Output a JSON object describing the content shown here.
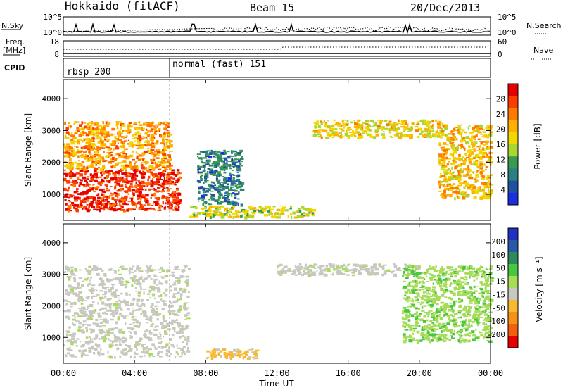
{
  "header": {
    "station": "Hokkaido (fitACF)",
    "beam": "Beam 15",
    "date": "20/Dec/2013"
  },
  "summary": {
    "left_top_label": "N.Sky",
    "left_top_ticks": [
      "10^5",
      "10^0"
    ],
    "right_top_label": "N.Search",
    "right_top_ticks": [
      "10^5",
      "10^0"
    ],
    "freq_label_line1": "Freq.",
    "freq_label_line2": "[MHz]",
    "freq_ticks": [
      "18",
      "8"
    ],
    "nave_label": "Nave",
    "nave_ticks": [
      "60",
      "0"
    ],
    "cpid_label": "CPID",
    "cpid_segments": [
      {
        "label": "rbsp 200",
        "start_hour": 0
      },
      {
        "label": "normal (fast) 151",
        "start_hour": 6
      }
    ]
  },
  "time_axis": {
    "label": "Time UT",
    "ticks": [
      "00:00",
      "04:00",
      "08:00",
      "12:00",
      "16:00",
      "20:00",
      "00:00"
    ],
    "tick_hours": [
      0,
      4,
      8,
      12,
      16,
      20,
      24
    ]
  },
  "panels": [
    {
      "name": "power",
      "ylabel": "Slant Range [km]",
      "yticks": [
        "1000",
        "2000",
        "3000",
        "4000"
      ],
      "ytick_values": [
        1000,
        2000,
        3000,
        4000
      ],
      "ylim": [
        180,
        4600
      ],
      "colorbar_label": "Power [dB]",
      "colorbar_ticks": [
        "28",
        "24",
        "20",
        "16",
        "12",
        "8",
        "4"
      ],
      "colorbar_colors": [
        "#e60000",
        "#ff3c00",
        "#ff7a00",
        "#ffb000",
        "#f0d800",
        "#a8d830",
        "#3c9a50",
        "#2a8080",
        "#2050a0",
        "#1830e0"
      ]
    },
    {
      "name": "velocity",
      "ylabel": "Slant Range [km]",
      "yticks": [
        "1000",
        "2000",
        "3000",
        "4000"
      ],
      "ytick_values": [
        1000,
        2000,
        3000,
        4000
      ],
      "ylim": [
        180,
        4600
      ],
      "colorbar_label": "Velocity [m s⁻¹]",
      "colorbar_ticks": [
        "200",
        "100",
        "50",
        "15",
        "-15",
        "-50",
        "-100",
        "-200"
      ],
      "colorbar_colors": [
        "#2030c0",
        "#2a58a8",
        "#2e8a5a",
        "#48c840",
        "#a8dc58",
        "#c8c8c0",
        "#f8b830",
        "#f89018",
        "#f06010",
        "#e80000"
      ]
    }
  ],
  "chart_data": {
    "type": "heatmap",
    "title": "Hokkaido (fitACF) Beam 15 20/Dec/2013",
    "xlabel": "Time UT",
    "ylabel": "Slant Range [km]",
    "xlim_hours": [
      0,
      24
    ],
    "ylim_km": [
      180,
      4600
    ],
    "regions": [
      {
        "panel": "power",
        "t0": 0.0,
        "t1": 6.5,
        "r0": 500,
        "r1": 1800,
        "value_db": 26
      },
      {
        "panel": "power",
        "t0": 0.0,
        "t1": 6.0,
        "r0": 1800,
        "r1": 3300,
        "value_db": 20
      },
      {
        "panel": "power",
        "t0": 7.0,
        "t1": 14.0,
        "r0": 300,
        "r1": 650,
        "value_db": 14
      },
      {
        "panel": "power",
        "t0": 7.5,
        "t1": 10.0,
        "r0": 700,
        "r1": 2400,
        "value_db": 6
      },
      {
        "panel": "power",
        "t0": 14.0,
        "t1": 21.5,
        "r0": 2800,
        "r1": 3350,
        "value_db": 16
      },
      {
        "panel": "power",
        "t0": 21.0,
        "t1": 24.0,
        "r0": 900,
        "r1": 3200,
        "value_db": 18
      },
      {
        "panel": "velocity",
        "t0": 0.0,
        "t1": 7.0,
        "r0": 400,
        "r1": 3300,
        "value_ms": 0
      },
      {
        "panel": "velocity",
        "t0": 8.0,
        "t1": 11.0,
        "r0": 350,
        "r1": 650,
        "value_ms": -60
      },
      {
        "panel": "velocity",
        "t0": 12.0,
        "t1": 20.0,
        "r0": 3000,
        "r1": 3350,
        "value_ms": 0
      },
      {
        "panel": "velocity",
        "t0": 19.0,
        "t1": 24.0,
        "r0": 900,
        "r1": 3300,
        "value_ms": 30
      }
    ]
  }
}
